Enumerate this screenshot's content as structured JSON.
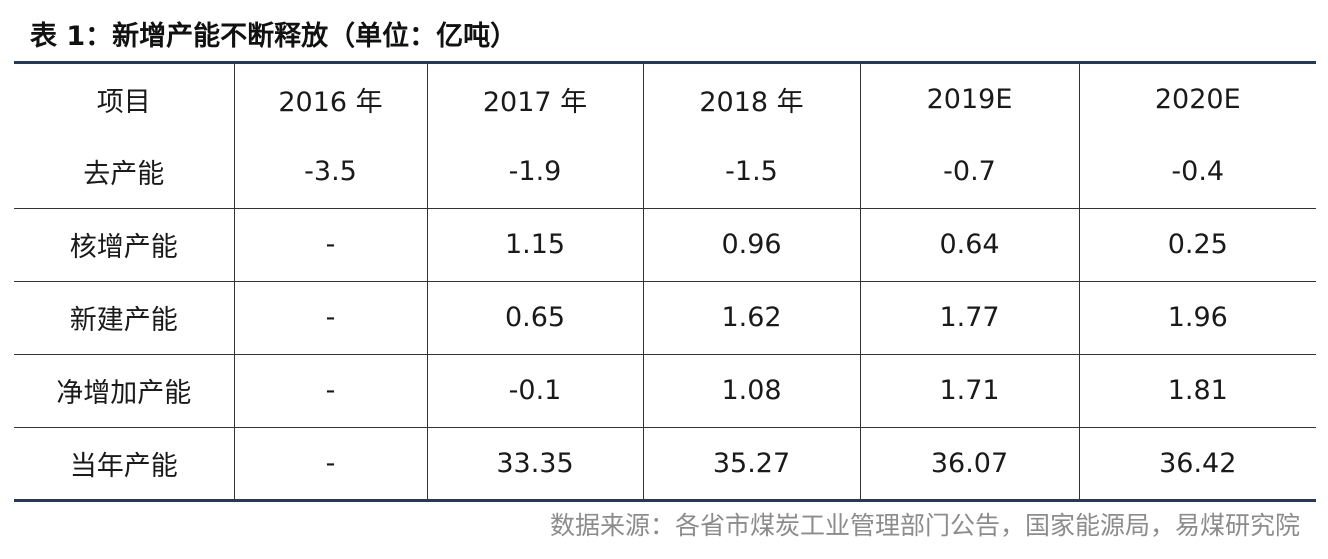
{
  "title": "表 1：新增产能不断释放（单位：亿吨）",
  "table": {
    "headers": [
      "项目",
      "2016 年",
      "2017 年",
      "2018 年",
      "2019E",
      "2020E"
    ],
    "rows": [
      [
        "去产能",
        "-3.5",
        "-1.9",
        "-1.5",
        "-0.7",
        "-0.4"
      ],
      [
        "核增产能",
        "-",
        "1.15",
        "0.96",
        "0.64",
        "0.25"
      ],
      [
        "新建产能",
        "-",
        "0.65",
        "1.62",
        "1.77",
        "1.96"
      ],
      [
        "净增加产能",
        "-",
        "-0.1",
        "1.08",
        "1.71",
        "1.81"
      ],
      [
        "当年产能",
        "-",
        "33.35",
        "35.27",
        "36.07",
        "36.42"
      ]
    ]
  },
  "source": "数据来源：各省市煤炭工业管理部门公告，国家能源局，易煤研究院",
  "colors": {
    "rule": "#1f3a66",
    "source_text": "#8c8c8c"
  }
}
